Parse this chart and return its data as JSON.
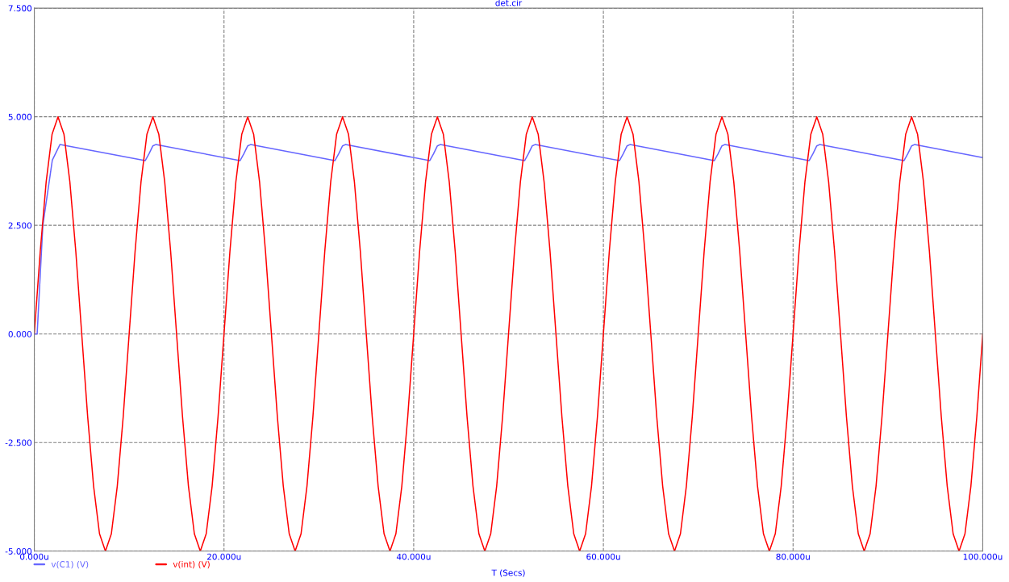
{
  "chart_data": {
    "type": "line",
    "title": "det.cir",
    "xlabel": "T (Secs)",
    "xlim": [
      0,
      100
    ],
    "ylim": [
      -5,
      7.5
    ],
    "xticks": [
      {
        "value": 0,
        "label": "0.000u"
      },
      {
        "value": 20,
        "label": "20.000u"
      },
      {
        "value": 40,
        "label": "40.000u"
      },
      {
        "value": 60,
        "label": "60.000u"
      },
      {
        "value": 80,
        "label": "80.000u"
      },
      {
        "value": 100,
        "label": "100.000u"
      }
    ],
    "yticks": [
      {
        "value": -5,
        "label": "-5.000"
      },
      {
        "value": -2.5,
        "label": "-2.500"
      },
      {
        "value": 0,
        "label": "0.000"
      },
      {
        "value": 2.5,
        "label": "2.500"
      },
      {
        "value": 5,
        "label": "5.000"
      },
      {
        "value": 7.5,
        "label": "7.500"
      }
    ],
    "grid": true,
    "legend": "bottom left",
    "line_style": "solid",
    "marker": "none",
    "series": [
      {
        "name": "v(C1) (V)",
        "color": "#6666ff",
        "x": [
          0,
          0.3,
          0.9,
          1.9,
          2.7,
          11.7,
          12.1,
          12.5,
          12.8,
          21.7,
          22.1,
          22.5,
          22.8,
          31.7,
          32.1,
          32.5,
          32.8,
          41.7,
          42.1,
          42.5,
          42.8,
          51.7,
          52.1,
          52.5,
          52.8,
          61.7,
          62.1,
          62.5,
          62.8,
          71.7,
          72.1,
          72.5,
          72.8,
          81.7,
          82.1,
          82.5,
          82.8,
          91.7,
          92.1,
          92.5,
          92.8,
          100
        ],
        "values": [
          0,
          0,
          2.5,
          4.0,
          4.36,
          3.99,
          4.15,
          4.33,
          4.36,
          3.99,
          4.15,
          4.33,
          4.36,
          3.99,
          4.15,
          4.33,
          4.36,
          3.99,
          4.15,
          4.33,
          4.36,
          3.99,
          4.15,
          4.33,
          4.36,
          3.99,
          4.15,
          4.33,
          4.36,
          3.99,
          4.15,
          4.33,
          4.36,
          3.99,
          4.15,
          4.33,
          4.36,
          3.99,
          4.15,
          4.33,
          4.36,
          4.06
        ]
      },
      {
        "name": "v(int) (V)",
        "color": "#ff0000",
        "x": [
          0,
          0.625,
          1.25,
          1.875,
          2.5,
          3.125,
          3.75,
          4.375,
          5,
          5.625,
          6.25,
          6.875,
          7.5,
          8.125,
          8.75,
          9.375,
          10,
          10.625,
          11.25,
          11.875,
          12.5,
          13.125,
          13.75,
          14.375,
          15,
          15.625,
          16.25,
          16.875,
          17.5,
          18.125,
          18.75,
          19.375,
          20,
          20.625,
          21.25,
          21.875,
          22.5,
          23.125,
          23.75,
          24.375,
          25,
          25.625,
          26.25,
          26.875,
          27.5,
          28.125,
          28.75,
          29.375,
          30,
          30.625,
          31.25,
          31.875,
          32.5,
          33.125,
          33.75,
          34.375,
          35,
          35.625,
          36.25,
          36.875,
          37.5,
          38.125,
          38.75,
          39.375,
          40,
          40.625,
          41.25,
          41.875,
          42.5,
          43.125,
          43.75,
          44.375,
          45,
          45.625,
          46.25,
          46.875,
          47.5,
          48.125,
          48.75,
          49.375,
          50,
          50.625,
          51.25,
          51.875,
          52.5,
          53.125,
          53.75,
          54.375,
          55,
          55.625,
          56.25,
          56.875,
          57.5,
          58.125,
          58.75,
          59.375,
          60,
          60.625,
          61.25,
          61.875,
          62.5,
          63.125,
          63.75,
          64.375,
          65,
          65.625,
          66.25,
          66.875,
          67.5,
          68.125,
          68.75,
          69.375,
          70,
          70.625,
          71.25,
          71.875,
          72.5,
          73.125,
          73.75,
          74.375,
          75,
          75.625,
          76.25,
          76.875,
          77.5,
          78.125,
          78.75,
          79.375,
          80,
          80.625,
          81.25,
          81.875,
          82.5,
          83.125,
          83.75,
          84.375,
          85,
          85.625,
          86.25,
          86.875,
          87.5,
          88.125,
          88.75,
          89.375,
          90,
          90.625,
          91.25,
          91.875,
          92.5,
          93.125,
          93.75,
          94.375,
          95,
          95.625,
          96.25,
          96.875,
          97.5,
          98.125,
          98.75,
          99.375,
          100
        ],
        "values": [
          0,
          1.9,
          3.5,
          4.6,
          5,
          4.6,
          3.5,
          1.9,
          0,
          -1.9,
          -3.5,
          -4.6,
          -5,
          -4.6,
          -3.5,
          -1.9,
          0,
          1.9,
          3.5,
          4.6,
          5,
          4.6,
          3.5,
          1.9,
          0,
          -1.9,
          -3.5,
          -4.6,
          -5,
          -4.6,
          -3.5,
          -1.9,
          0,
          1.9,
          3.5,
          4.6,
          5,
          4.6,
          3.5,
          1.9,
          0,
          -1.9,
          -3.5,
          -4.6,
          -5,
          -4.6,
          -3.5,
          -1.9,
          0,
          1.9,
          3.5,
          4.6,
          5,
          4.6,
          3.5,
          1.9,
          0,
          -1.9,
          -3.5,
          -4.6,
          -5,
          -4.6,
          -3.5,
          -1.9,
          0,
          1.9,
          3.5,
          4.6,
          5,
          4.6,
          3.5,
          1.9,
          0,
          -1.9,
          -3.5,
          -4.6,
          -5,
          -4.6,
          -3.5,
          -1.9,
          0,
          1.9,
          3.5,
          4.6,
          5,
          4.6,
          3.5,
          1.9,
          0,
          -1.9,
          -3.5,
          -4.6,
          -5,
          -4.6,
          -3.5,
          -1.9,
          0,
          1.9,
          3.5,
          4.6,
          5,
          4.6,
          3.5,
          1.9,
          0,
          -1.9,
          -3.5,
          -4.6,
          -5,
          -4.6,
          -3.5,
          -1.9,
          0,
          1.9,
          3.5,
          4.6,
          5,
          4.6,
          3.5,
          1.9,
          0,
          -1.9,
          -3.5,
          -4.6,
          -5,
          -4.6,
          -3.5,
          -1.9,
          0,
          1.9,
          3.5,
          4.6,
          5,
          4.6,
          3.5,
          1.9,
          0,
          -1.9,
          -3.5,
          -4.6,
          -5,
          -4.6,
          -3.5,
          -1.9,
          0,
          1.9,
          3.5,
          4.6,
          5,
          4.6,
          3.5,
          1.9,
          0,
          -1.9,
          -3.5,
          -4.6,
          -5,
          -4.6,
          -3.5,
          -1.9,
          0
        ]
      }
    ]
  }
}
